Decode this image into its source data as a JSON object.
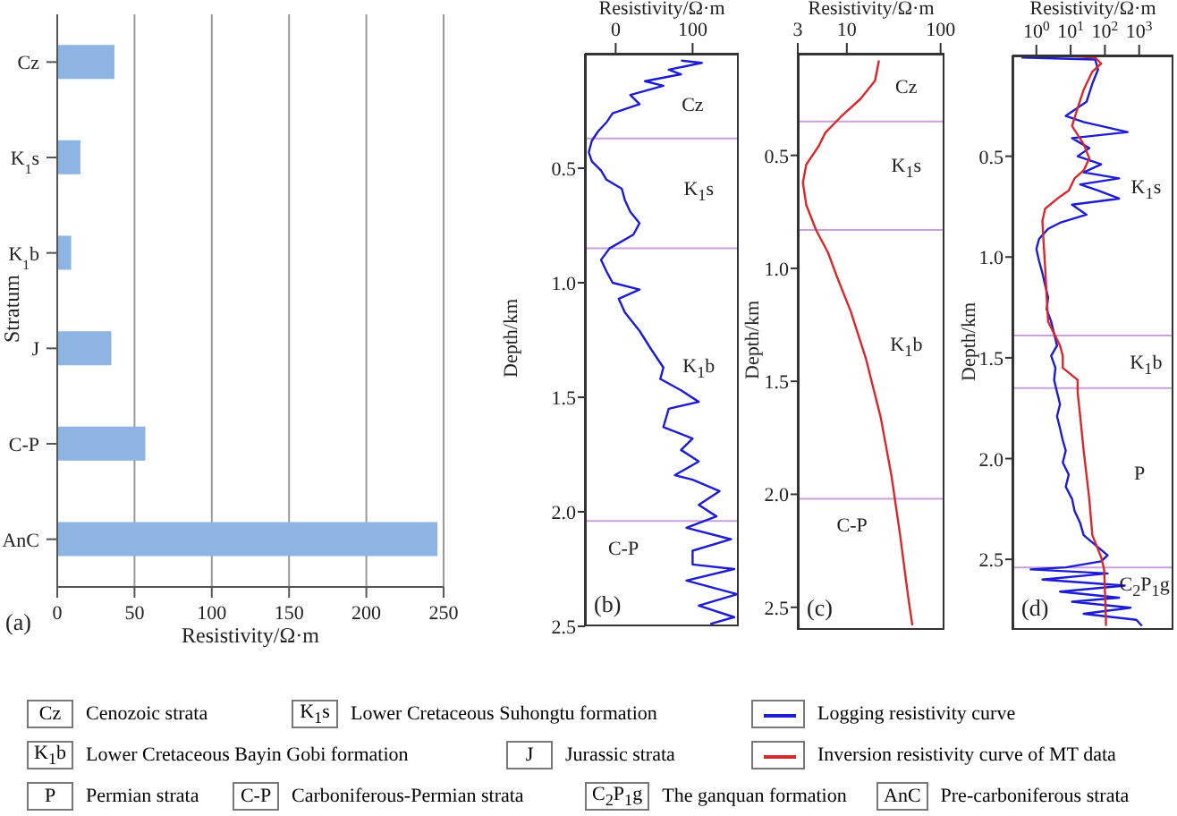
{
  "chart_data": [
    {
      "type": "bar",
      "orientation": "horizontal",
      "title": "(a)",
      "xlabel": "Resistivity/Ω·m",
      "ylabel": "Stratum",
      "categories": [
        "Cz",
        "K$_{1}$s",
        "K$_{1}$b",
        "J",
        "C-P",
        "AnC"
      ],
      "values": [
        37,
        15,
        9,
        35,
        57,
        246
      ],
      "color": "#8db4e2",
      "xlim": [
        0,
        250
      ],
      "xticks": [
        0,
        50,
        100,
        150,
        200,
        250
      ],
      "grid": "x"
    },
    {
      "type": "line",
      "title": "(b)",
      "xlabel": "Resistivity/Ω·m",
      "ylabel": "Depth/km",
      "xlim": [
        -40,
        160
      ],
      "xticks": [
        0,
        100
      ],
      "ylim": [
        2.5,
        0
      ],
      "yticks": [
        {
          "value": 0.5,
          "label": "0.5"
        },
        {
          "value": 1,
          "label": "1.0"
        },
        {
          "value": 1.5,
          "label": "1.5"
        },
        {
          "value": 2,
          "label": "2.0"
        },
        {
          "value": 2.5,
          "label": "2.5"
        }
      ],
      "series": [
        {
          "color": "#1c1cd4",
          "x": [
            85,
            112,
            69,
            85,
            38,
            62,
            19,
            31,
            -4,
            -12,
            -23,
            -31,
            -35,
            -31,
            -19,
            -12,
            8,
            12,
            19,
            31,
            23,
            -8,
            -19,
            -12,
            -4,
            31,
            4,
            12,
            31,
            46,
            62,
            58,
            85,
            108,
            69,
            62,
            100,
            85,
            108,
            77,
            100,
            135,
            108,
            131,
            92,
            150,
            100,
            100,
            154,
            92,
            158,
            108,
            154,
            123
          ],
          "values": [
            0.03,
            0.04,
            0.07,
            0.09,
            0.12,
            0.14,
            0.18,
            0.22,
            0.26,
            0.3,
            0.34,
            0.38,
            0.43,
            0.47,
            0.51,
            0.55,
            0.59,
            0.64,
            0.69,
            0.74,
            0.79,
            0.85,
            0.9,
            0.95,
            1.0,
            1.03,
            1.07,
            1.13,
            1.21,
            1.29,
            1.37,
            1.42,
            1.47,
            1.52,
            1.55,
            1.63,
            1.68,
            1.73,
            1.78,
            1.84,
            1.86,
            1.91,
            1.97,
            2.02,
            2.07,
            2.12,
            2.17,
            2.23,
            2.25,
            2.3,
            2.36,
            2.41,
            2.46,
            2.49
          ]
        }
      ],
      "ref_lines": [
        {
          "axis": "y",
          "value": 0.37,
          "color": "#c9a0dc"
        },
        {
          "axis": "y",
          "value": 0.85,
          "color": "#c9a0dc"
        },
        {
          "axis": "y",
          "value": 2.04,
          "color": "#c9a0dc"
        }
      ],
      "annotations": [
        "Cz",
        "K$_{1}$s",
        "K$_{1}$b",
        "C-P"
      ]
    },
    {
      "type": "line",
      "title": "(c)",
      "xlabel": "Resistivity/Ω·m",
      "ylabel": "Depth/km",
      "log": "x",
      "xlim": [
        3,
        110
      ],
      "xticks": [
        3,
        10,
        100
      ],
      "ylim": [
        2.6,
        0.05
      ],
      "yticks": [
        {
          "value": 0.5,
          "label": "0.5"
        },
        {
          "value": 1,
          "label": "1.0"
        },
        {
          "value": 1.5,
          "label": "1.5"
        },
        {
          "value": 2,
          "label": "2.0"
        },
        {
          "value": 2.5,
          "label": "2.5"
        }
      ],
      "series": [
        {
          "color": "#d9282c",
          "x": [
            22,
            20,
            14,
            8.6,
            5.9,
            5.0,
            3.7,
            3.4,
            3.7,
            4.7,
            6.3,
            7.9,
            11,
            16,
            23,
            30,
            37,
            45,
            50
          ],
          "values": [
            0.08,
            0.17,
            0.25,
            0.33,
            0.4,
            0.46,
            0.54,
            0.62,
            0.72,
            0.83,
            0.93,
            1.04,
            1.19,
            1.4,
            1.66,
            1.92,
            2.18,
            2.45,
            2.58
          ]
        }
      ],
      "ref_lines": [
        {
          "axis": "y",
          "value": 0.35,
          "color": "#c9a0dc"
        },
        {
          "axis": "y",
          "value": 0.83,
          "color": "#c9a0dc"
        },
        {
          "axis": "y",
          "value": 2.02,
          "color": "#c9a0dc"
        }
      ],
      "annotations": [
        "Cz",
        "K$_{1}$s",
        "K$_{1}$b",
        "C-P"
      ]
    },
    {
      "type": "line",
      "title": "(d)",
      "xlabel": "Resistivity/Ω·m",
      "ylabel": "Depth/km",
      "log": "x",
      "legend": "bottom",
      "xlim": [
        0.2,
        10000
      ],
      "xticks": [
        {
          "value": 1,
          "label": "10$^{0}$"
        },
        {
          "value": 10,
          "label": "10$^{1}$"
        },
        {
          "value": 100,
          "label": "10$^{2}$"
        },
        {
          "value": 1000,
          "label": "10$^{3}$"
        }
      ],
      "ylim": [
        2.85,
        0
      ],
      "yticks": [
        {
          "value": 0.5,
          "label": "0.5"
        },
        {
          "value": 1,
          "label": "1.0"
        },
        {
          "value": 1.5,
          "label": "1.5"
        },
        {
          "value": 2,
          "label": "2.0"
        },
        {
          "value": 2.5,
          "label": "2.5"
        }
      ],
      "series": [
        {
          "name": "Logging resistivity curve",
          "color": "#1c1cd4",
          "x": [
            0.37,
            52,
            63,
            43,
            29,
            7.2,
            24,
            460,
            11,
            35,
            16,
            78,
            24,
            260,
            19,
            63,
            260,
            11,
            29,
            4.9,
            2.2,
            1.2,
            1,
            1.2,
            1.5,
            1.8,
            2.2,
            2.0,
            2.7,
            3.3,
            4.0,
            2.7,
            3.6,
            3.3,
            4.0,
            4.9,
            4.0,
            4.9,
            5.9,
            7.2,
            5.9,
            8.8,
            7.2,
            11,
            13,
            19,
            24,
            63,
            120,
            78,
            7.2,
            0.68,
            120,
            1.5,
            380,
            4.9,
            260,
            11,
            560,
            24,
            830,
            1200
          ],
          "values": [
            0.01,
            0.02,
            0.07,
            0.14,
            0.23,
            0.3,
            0.33,
            0.38,
            0.41,
            0.46,
            0.5,
            0.54,
            0.58,
            0.61,
            0.64,
            0.67,
            0.71,
            0.74,
            0.79,
            0.83,
            0.86,
            0.91,
            0.96,
            1.02,
            1.08,
            1.14,
            1.2,
            1.26,
            1.32,
            1.38,
            1.44,
            1.49,
            1.55,
            1.61,
            1.67,
            1.73,
            1.79,
            1.85,
            1.91,
            1.96,
            2.02,
            2.08,
            2.14,
            2.2,
            2.26,
            2.32,
            2.38,
            2.44,
            2.48,
            2.51,
            2.54,
            2.55,
            2.57,
            2.6,
            2.63,
            2.66,
            2.69,
            2.71,
            2.74,
            2.77,
            2.8,
            2.83
          ]
        },
        {
          "name": "Inversion resistivity curve of MT data",
          "color": "#d9282c",
          "x": [
            4.9,
            52,
            78,
            43,
            24,
            16,
            11,
            24,
            35,
            24,
            13,
            8.8,
            4.9,
            1.8,
            1.5,
            1.6,
            1.8,
            2.0,
            2.2,
            3.3,
            4.9,
            5.9,
            5.9,
            16,
            16,
            19,
            24,
            35,
            43,
            78,
            95,
            107,
            107
          ],
          "values": [
            0.0,
            0.01,
            0.04,
            0.08,
            0.17,
            0.26,
            0.35,
            0.44,
            0.51,
            0.57,
            0.61,
            0.67,
            0.7,
            0.76,
            0.82,
            0.91,
            1.05,
            1.2,
            1.32,
            1.38,
            1.44,
            1.49,
            1.55,
            1.61,
            1.67,
            1.79,
            1.96,
            2.2,
            2.38,
            2.49,
            2.55,
            2.79,
            2.83
          ]
        }
      ],
      "ref_lines": [
        {
          "axis": "y",
          "value": 1.39,
          "color": "#c9a0dc"
        },
        {
          "axis": "y",
          "value": 1.65,
          "color": "#c9a0dc"
        },
        {
          "axis": "y",
          "value": 2.54,
          "color": "#c9a0dc"
        }
      ],
      "annotations": [
        "K$_{1}$s",
        "K$_{1}$b",
        "P",
        "C$_{2}$P$_{1}$g"
      ]
    },
    {
      "type": "other",
      "annotations": [
        "Cz",
        "Cenozoic strata",
        "K$_{1}$s",
        "Lower Cretaceous Suhongtu formation",
        "K$_{1}$b",
        "Lower Cretaceous Bayin Gobi formation",
        "J",
        "Jurassic strata",
        "P",
        "Permian strata",
        "C-P",
        "Carboniferous-Permian strata",
        "C$_{2}$P$_{1}$g",
        "The ganquan formation",
        "AnC",
        "Pre-carboniferous strata"
      ]
    }
  ]
}
